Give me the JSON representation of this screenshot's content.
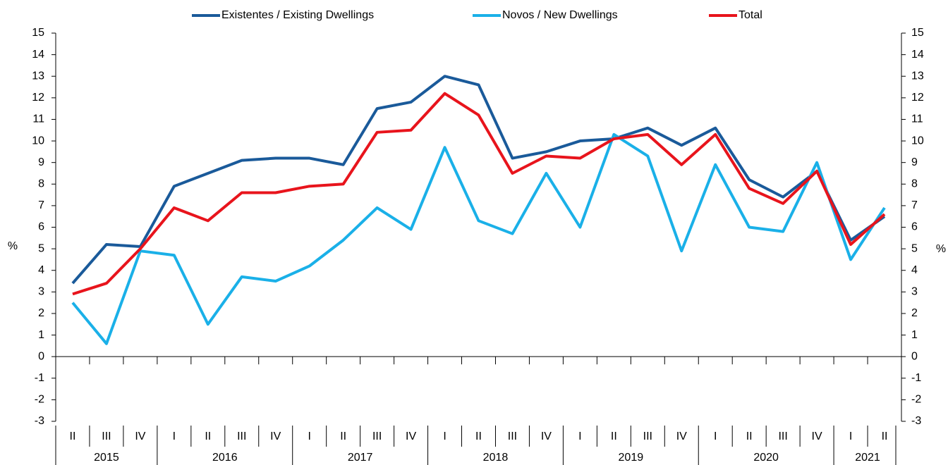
{
  "chart_data": {
    "type": "line",
    "y_label": "%",
    "year_groups": [
      {
        "label": "2015",
        "quarters": [
          "II",
          "III",
          "IV"
        ]
      },
      {
        "label": "2016",
        "quarters": [
          "I",
          "II",
          "III",
          "IV"
        ]
      },
      {
        "label": "2017",
        "quarters": [
          "I",
          "II",
          "III",
          "IV"
        ]
      },
      {
        "label": "2018",
        "quarters": [
          "I",
          "II",
          "III",
          "IV"
        ]
      },
      {
        "label": "2019",
        "quarters": [
          "I",
          "II",
          "III",
          "IV"
        ]
      },
      {
        "label": "2020",
        "quarters": [
          "I",
          "II",
          "III",
          "IV"
        ]
      },
      {
        "label": "2021",
        "quarters": [
          "I",
          "II"
        ]
      }
    ],
    "series": [
      {
        "name": "Existentes / Existing Dwellings",
        "color": "#1a5a9a",
        "values": [
          3.4,
          5.2,
          5.1,
          7.9,
          8.5,
          9.1,
          9.2,
          9.2,
          8.9,
          11.5,
          11.8,
          13.0,
          12.6,
          9.2,
          9.5,
          10.0,
          10.1,
          10.6,
          9.8,
          10.6,
          8.2,
          7.4,
          8.6,
          5.4,
          6.5
        ]
      },
      {
        "name": "Novos / New Dwellings",
        "color": "#1ab0e8",
        "values": [
          2.5,
          0.6,
          4.9,
          4.7,
          1.5,
          3.7,
          3.5,
          4.2,
          5.4,
          6.9,
          5.9,
          9.7,
          6.3,
          5.7,
          8.5,
          6.0,
          10.3,
          9.3,
          4.9,
          8.9,
          6.0,
          5.8,
          9.0,
          4.5,
          6.9
        ]
      },
      {
        "name": "Total",
        "color": "#e8141c",
        "values": [
          2.9,
          3.4,
          5.0,
          6.9,
          6.3,
          7.6,
          7.6,
          7.9,
          8.0,
          10.4,
          10.5,
          12.2,
          11.2,
          8.5,
          9.3,
          9.2,
          10.1,
          10.3,
          8.9,
          10.3,
          7.8,
          7.1,
          8.6,
          5.2,
          6.6
        ]
      }
    ],
    "ylim": [
      -3,
      15
    ],
    "yticks": [
      -3,
      -2,
      -1,
      0,
      1,
      2,
      3,
      4,
      5,
      6,
      7,
      8,
      9,
      10,
      11,
      12,
      13,
      14,
      15
    ],
    "legend": "top"
  }
}
